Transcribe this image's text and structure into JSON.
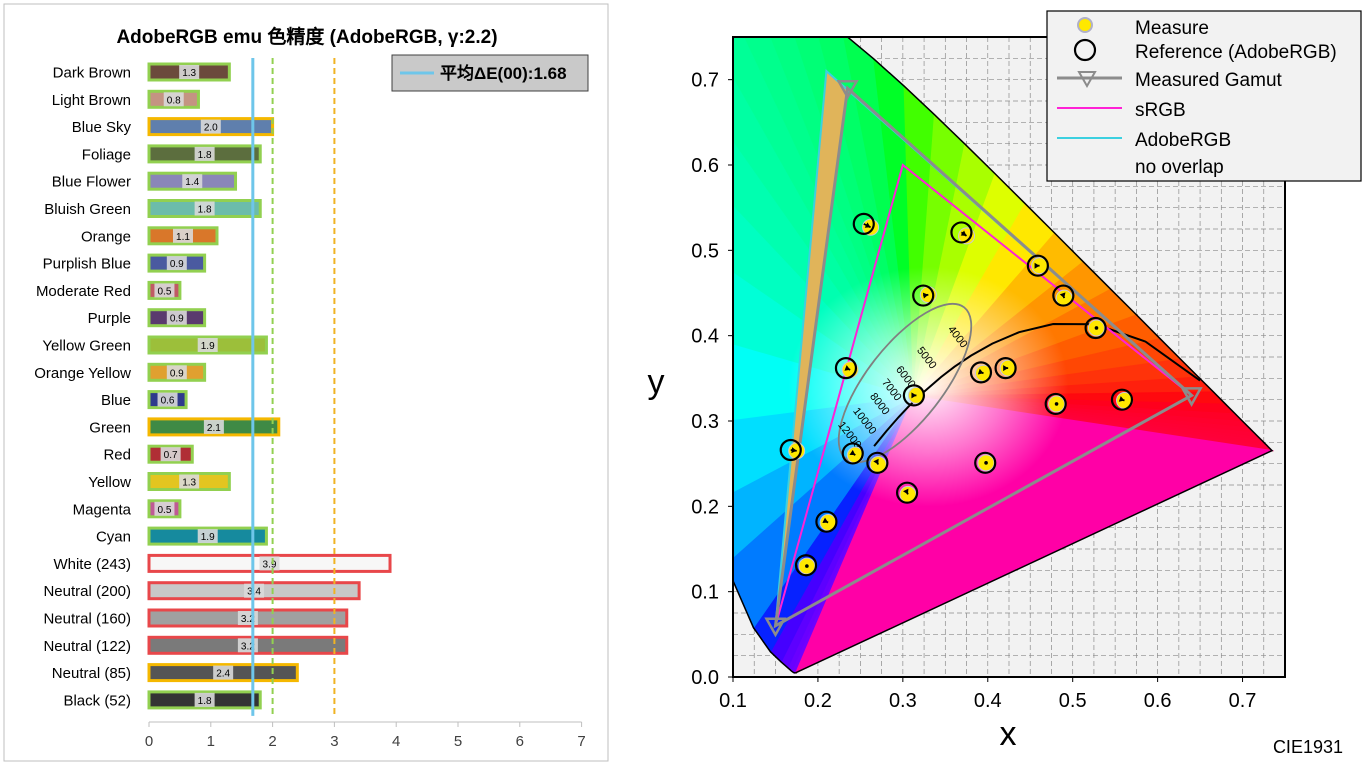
{
  "left_chart": {
    "title": "AdobeRGB emu 色精度 (AdobeRGB, γ:2.2)",
    "legend_label": "平均ΔE(00):1.68",
    "average": 1.68,
    "x_ticks": [
      0,
      1,
      2,
      3,
      4,
      5,
      6,
      7
    ],
    "reference_lines": [
      {
        "value": 2,
        "color": "#92d050",
        "style": "dashed"
      },
      {
        "value": 3,
        "color": "#f0b323",
        "style": "dashed"
      }
    ],
    "colors": {
      "average_line": "#6ec6ea",
      "grade_good": "#92d050",
      "grade_fair": "#f5b800",
      "grade_poor": "#e8474a"
    }
  },
  "chart_data": [
    {
      "type": "bar",
      "title": "AdobeRGB emu 色精度 (AdobeRGB, γ:2.2)",
      "xlim": [
        0,
        7
      ],
      "categories": [
        "Dark Brown",
        "Light Brown",
        "Blue Sky",
        "Foliage",
        "Blue Flower",
        "Bluish Green",
        "Orange",
        "Purplish Blue",
        "Moderate Red",
        "Purple",
        "Yellow Green",
        "Orange Yellow",
        "Blue",
        "Green",
        "Red",
        "Yellow",
        "Magenta",
        "Cyan",
        "White (243)",
        "Neutral (200)",
        "Neutral (160)",
        "Neutral (122)",
        "Neutral (85)",
        "Black (52)"
      ],
      "values": [
        1.3,
        0.8,
        2.0,
        1.8,
        1.4,
        1.8,
        1.1,
        0.9,
        0.5,
        0.9,
        1.9,
        0.9,
        0.6,
        2.1,
        0.7,
        1.3,
        0.5,
        1.9,
        3.9,
        3.4,
        3.2,
        3.2,
        2.4,
        1.8
      ],
      "labels": [
        "1.3",
        "0.8",
        "2.0",
        "1.8",
        "1.4",
        "1.8",
        "1.1",
        "0.9",
        "0.5",
        "0.9",
        "1.9",
        "0.9",
        "0.6",
        "2.1",
        "0.7",
        "1.3",
        "0.5",
        "1.9",
        "3.9",
        "3.4",
        "3.2",
        "3.2",
        "2.4",
        "1.8"
      ],
      "bar_colors": [
        "#6b4a3c",
        "#c49482",
        "#5f7fad",
        "#5c6e3e",
        "#8a86b8",
        "#6cbcaa",
        "#d9772a",
        "#4a5aa0",
        "#c05a65",
        "#5a3a6e",
        "#9cbf3a",
        "#e0a030",
        "#2f3a8c",
        "#3f8a45",
        "#b02e35",
        "#e3c520",
        "#bf5a95",
        "#168a9e",
        "#f7f7f7",
        "#c8c8c8",
        "#a0a0a0",
        "#7a7a7a",
        "#555555",
        "#343434"
      ],
      "average_line": 1.68,
      "grid": false
    },
    {
      "type": "scatter",
      "title": "",
      "xlabel": "x",
      "ylabel": "y",
      "xlim": [
        0.1,
        0.75
      ],
      "ylim": [
        0.0,
        0.75
      ],
      "x_ticks": [
        "0.1",
        "0.2",
        "0.3",
        "0.4",
        "0.5",
        "0.6",
        "0.7"
      ],
      "y_ticks": [
        "0.0",
        "0.1",
        "0.2",
        "0.3",
        "0.4",
        "0.5",
        "0.6",
        "0.7"
      ],
      "grid": true,
      "legend_position": "top-right",
      "legend": [
        "Measure",
        "Reference (AdobeRGB)",
        "Measured Gamut",
        "sRGB",
        "AdobeRGB",
        "no overlap"
      ],
      "footer": "CIE1931",
      "cct_labels": [
        "4000",
        "5000",
        "6000",
        "7000",
        "8000",
        "10000",
        "12000"
      ],
      "measured_gamut": [
        [
          0.64,
          0.33
        ],
        [
          0.235,
          0.69
        ],
        [
          0.15,
          0.06
        ]
      ],
      "srgb_gamut": [
        [
          0.64,
          0.33
        ],
        [
          0.3,
          0.6
        ],
        [
          0.15,
          0.06
        ]
      ],
      "adobergb_gamut": [
        [
          0.64,
          0.33
        ],
        [
          0.21,
          0.71
        ],
        [
          0.15,
          0.06
        ]
      ],
      "reference_points": [
        [
          0.254,
          0.531
        ],
        [
          0.369,
          0.521
        ],
        [
          0.459,
          0.482
        ],
        [
          0.489,
          0.447
        ],
        [
          0.527,
          0.409
        ],
        [
          0.324,
          0.447
        ],
        [
          0.233,
          0.362
        ],
        [
          0.392,
          0.357
        ],
        [
          0.421,
          0.362
        ],
        [
          0.313,
          0.33
        ],
        [
          0.168,
          0.266
        ],
        [
          0.241,
          0.262
        ],
        [
          0.27,
          0.251
        ],
        [
          0.48,
          0.32
        ],
        [
          0.558,
          0.325
        ],
        [
          0.397,
          0.251
        ],
        [
          0.305,
          0.216
        ],
        [
          0.21,
          0.182
        ],
        [
          0.186,
          0.131
        ]
      ],
      "measured_points": [
        [
          0.262,
          0.527
        ],
        [
          0.375,
          0.517
        ],
        [
          0.461,
          0.482
        ],
        [
          0.49,
          0.444
        ],
        [
          0.528,
          0.409
        ],
        [
          0.33,
          0.448
        ],
        [
          0.238,
          0.36
        ],
        [
          0.395,
          0.356
        ],
        [
          0.424,
          0.362
        ],
        [
          0.316,
          0.33
        ],
        [
          0.175,
          0.265
        ],
        [
          0.244,
          0.26
        ],
        [
          0.271,
          0.249
        ],
        [
          0.481,
          0.32
        ],
        [
          0.561,
          0.324
        ],
        [
          0.398,
          0.251
        ],
        [
          0.306,
          0.214
        ],
        [
          0.212,
          0.181
        ],
        [
          0.187,
          0.13
        ]
      ]
    }
  ]
}
